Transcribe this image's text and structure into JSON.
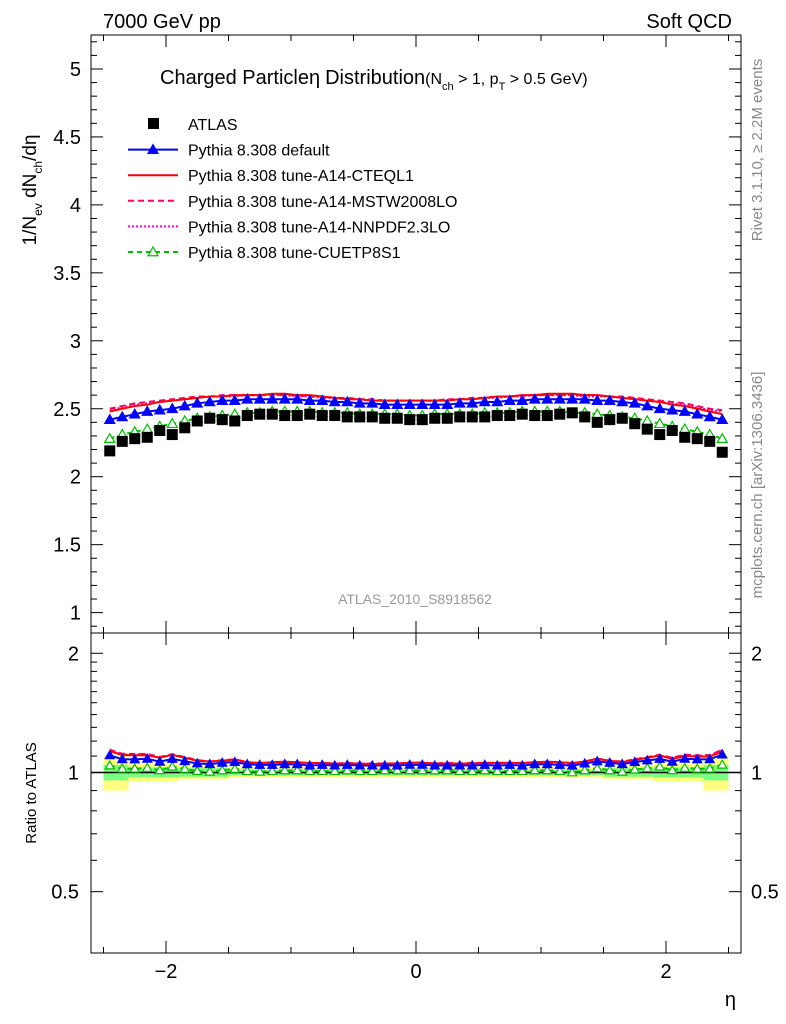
{
  "header": {
    "left": "7000 GeV pp",
    "right": "Soft QCD"
  },
  "side_labels": {
    "rivet": "Rivet 3.1.10, ≥ 2.2M events",
    "mcplots": "mcplots.cern.ch [arXiv:1306.3436]"
  },
  "analysis_id": "ATLAS_2010_S8918562",
  "colors": {
    "atlas": "#000000",
    "default": "#0000ff",
    "cteql1": "#ff0000",
    "mstw": "#ff0066",
    "nnpdf": "#ff00cc",
    "cuetp8s1": "#00bb00",
    "band_inner": "#7fff7f",
    "band_outer": "#ffff80"
  },
  "chart_data": [
    {
      "type": "scatter",
      "title_main": "Charged Particle",
      "title_eta": "η",
      "title_rest": "Distribution",
      "title_cond": "(N",
      "title_cond_sub1": "ch",
      "title_cond_mid": " > 1, p",
      "title_cond_sub2": "T",
      "title_cond_end": " > 0.5 GeV)",
      "ylabel": "1/N_ev dN_ch/dη",
      "ylabel_parts": {
        "a": "1/N",
        "a_sub": "ev",
        "b": " dN",
        "b_sub": "ch",
        "c": "/dη"
      },
      "xlim": [
        -2.6,
        2.6
      ],
      "ylim": [
        0.85,
        5.25
      ],
      "yticks": [
        "1",
        "1.5",
        "2",
        "2.5",
        "3",
        "3.5",
        "4",
        "4.5",
        "5"
      ],
      "ytick_values": [
        1,
        1.5,
        2,
        2.5,
        3,
        3.5,
        4,
        4.5,
        5
      ],
      "legend_position": "top-left",
      "x": [
        -2.45,
        -2.35,
        -2.25,
        -2.15,
        -2.05,
        -1.95,
        -1.85,
        -1.75,
        -1.65,
        -1.55,
        -1.45,
        -1.35,
        -1.25,
        -1.15,
        -1.05,
        -0.95,
        -0.85,
        -0.75,
        -0.65,
        -0.55,
        -0.45,
        -0.35,
        -0.25,
        -0.15,
        -0.05,
        0.05,
        0.15,
        0.25,
        0.35,
        0.45,
        0.55,
        0.65,
        0.75,
        0.85,
        0.95,
        1.05,
        1.15,
        1.25,
        1.35,
        1.45,
        1.55,
        1.65,
        1.75,
        1.85,
        1.95,
        2.05,
        2.15,
        2.25,
        2.35,
        2.45
      ],
      "series": [
        {
          "name": "ATLAS",
          "key": "atlas",
          "marker": "filled-square",
          "values": [
            2.19,
            2.26,
            2.28,
            2.29,
            2.34,
            2.31,
            2.36,
            2.41,
            2.43,
            2.42,
            2.41,
            2.45,
            2.46,
            2.46,
            2.45,
            2.45,
            2.46,
            2.45,
            2.45,
            2.44,
            2.44,
            2.44,
            2.43,
            2.43,
            2.42,
            2.42,
            2.43,
            2.43,
            2.44,
            2.44,
            2.44,
            2.45,
            2.45,
            2.46,
            2.45,
            2.45,
            2.46,
            2.47,
            2.44,
            2.4,
            2.42,
            2.43,
            2.39,
            2.35,
            2.31,
            2.34,
            2.29,
            2.28,
            2.26,
            2.18
          ]
        },
        {
          "name": "Pythia 8.308 default",
          "key": "default",
          "marker": "filled-triangle",
          "values": [
            2.42,
            2.44,
            2.46,
            2.48,
            2.49,
            2.5,
            2.52,
            2.54,
            2.55,
            2.56,
            2.56,
            2.57,
            2.57,
            2.57,
            2.57,
            2.57,
            2.56,
            2.56,
            2.55,
            2.55,
            2.54,
            2.54,
            2.53,
            2.53,
            2.53,
            2.53,
            2.53,
            2.53,
            2.54,
            2.54,
            2.55,
            2.55,
            2.56,
            2.56,
            2.57,
            2.57,
            2.57,
            2.57,
            2.57,
            2.56,
            2.56,
            2.55,
            2.54,
            2.52,
            2.5,
            2.49,
            2.48,
            2.46,
            2.44,
            2.42
          ]
        },
        {
          "name": "Pythia 8.308 tune-A14-CTEQL1",
          "key": "cteql1",
          "marker": "line",
          "values": [
            2.48,
            2.5,
            2.52,
            2.53,
            2.55,
            2.56,
            2.57,
            2.58,
            2.59,
            2.59,
            2.6,
            2.6,
            2.6,
            2.61,
            2.61,
            2.6,
            2.6,
            2.59,
            2.58,
            2.57,
            2.57,
            2.56,
            2.56,
            2.56,
            2.56,
            2.56,
            2.56,
            2.56,
            2.57,
            2.57,
            2.58,
            2.59,
            2.59,
            2.6,
            2.6,
            2.61,
            2.61,
            2.61,
            2.6,
            2.6,
            2.59,
            2.58,
            2.57,
            2.56,
            2.55,
            2.53,
            2.52,
            2.5,
            2.48,
            2.46
          ]
        },
        {
          "name": "Pythia 8.308 tune-A14-MSTW2008LO",
          "key": "mstw",
          "marker": "dashed",
          "values": [
            2.5,
            2.52,
            2.54,
            2.55,
            2.56,
            2.57,
            2.58,
            2.59,
            2.59,
            2.6,
            2.6,
            2.6,
            2.6,
            2.6,
            2.6,
            2.6,
            2.59,
            2.59,
            2.58,
            2.58,
            2.57,
            2.57,
            2.56,
            2.56,
            2.56,
            2.56,
            2.56,
            2.57,
            2.57,
            2.58,
            2.58,
            2.59,
            2.59,
            2.6,
            2.6,
            2.6,
            2.6,
            2.6,
            2.6,
            2.6,
            2.59,
            2.59,
            2.58,
            2.57,
            2.56,
            2.55,
            2.54,
            2.52,
            2.5,
            2.49
          ]
        },
        {
          "name": "Pythia 8.308 tune-A14-NNPDF2.3LO",
          "key": "nnpdf",
          "marker": "dotted",
          "values": [
            2.49,
            2.51,
            2.53,
            2.54,
            2.55,
            2.56,
            2.57,
            2.58,
            2.59,
            2.59,
            2.59,
            2.6,
            2.6,
            2.6,
            2.6,
            2.59,
            2.59,
            2.58,
            2.58,
            2.57,
            2.57,
            2.56,
            2.56,
            2.56,
            2.56,
            2.56,
            2.56,
            2.56,
            2.57,
            2.57,
            2.58,
            2.58,
            2.59,
            2.59,
            2.6,
            2.6,
            2.6,
            2.6,
            2.59,
            2.59,
            2.59,
            2.58,
            2.57,
            2.56,
            2.55,
            2.54,
            2.53,
            2.51,
            2.49,
            2.48
          ]
        },
        {
          "name": "Pythia 8.308 tune-CUETP8S1",
          "key": "cuetp8s1",
          "marker": "open-triangle-dashed",
          "values": [
            2.28,
            2.31,
            2.33,
            2.35,
            2.37,
            2.39,
            2.41,
            2.43,
            2.44,
            2.45,
            2.46,
            2.47,
            2.47,
            2.48,
            2.48,
            2.48,
            2.48,
            2.47,
            2.47,
            2.47,
            2.46,
            2.46,
            2.46,
            2.46,
            2.45,
            2.45,
            2.46,
            2.46,
            2.46,
            2.46,
            2.47,
            2.47,
            2.47,
            2.48,
            2.48,
            2.48,
            2.48,
            2.47,
            2.47,
            2.46,
            2.45,
            2.44,
            2.43,
            2.41,
            2.39,
            2.37,
            2.35,
            2.33,
            2.31,
            2.28
          ]
        }
      ]
    },
    {
      "type": "scatter",
      "ylabel": "Ratio to ATLAS",
      "xlabel": "η",
      "xlim": [
        -2.6,
        2.6
      ],
      "ylim": [
        0.35,
        2.25
      ],
      "xticks": [
        "−2",
        "0",
        "2"
      ],
      "xtick_values": [
        -2,
        0,
        2
      ],
      "yticks_left": [
        "0.5",
        "1",
        "2"
      ],
      "yticks_right": [
        "0.5",
        "1",
        "2"
      ],
      "ytick_values": [
        0.5,
        1,
        2
      ],
      "uncertainty_bands": [
        {
          "x_from": -2.5,
          "x_to": -2.3,
          "inner": [
            0.955,
            1.045
          ],
          "outer": [
            0.9,
            1.1
          ]
        },
        {
          "x_from": -2.3,
          "x_to": -1.9,
          "inner": [
            0.97,
            1.03
          ],
          "outer": [
            0.95,
            1.05
          ]
        },
        {
          "x_from": -1.9,
          "x_to": -1.5,
          "inner": [
            0.975,
            1.025
          ],
          "outer": [
            0.96,
            1.04
          ]
        },
        {
          "x_from": -1.5,
          "x_to": 1.5,
          "inner": [
            0.985,
            1.015
          ],
          "outer": [
            0.97,
            1.03
          ]
        },
        {
          "x_from": 1.5,
          "x_to": 1.9,
          "inner": [
            0.975,
            1.025
          ],
          "outer": [
            0.96,
            1.04
          ]
        },
        {
          "x_from": 1.9,
          "x_to": 2.3,
          "inner": [
            0.97,
            1.03
          ],
          "outer": [
            0.95,
            1.05
          ]
        },
        {
          "x_from": 2.3,
          "x_to": 2.5,
          "inner": [
            0.955,
            1.045
          ],
          "outer": [
            0.9,
            1.1
          ]
        }
      ]
    }
  ]
}
